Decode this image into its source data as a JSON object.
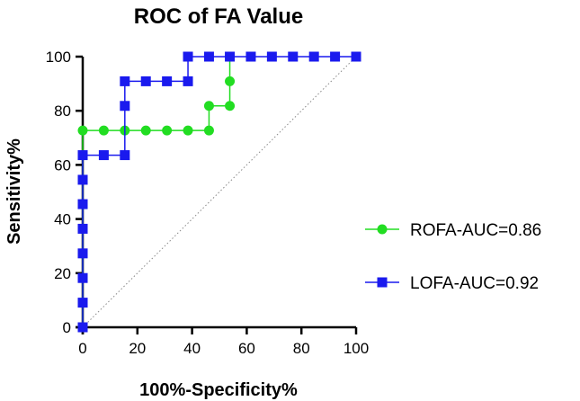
{
  "chart_data": {
    "type": "line",
    "title": "ROC of FA Value",
    "xlabel": "100%-Specificity%",
    "ylabel": "Sensitivity%",
    "xlim": [
      0,
      100
    ],
    "ylim": [
      0,
      100
    ],
    "xticks": [
      0,
      20,
      40,
      60,
      80,
      100
    ],
    "yticks": [
      0,
      20,
      40,
      60,
      80,
      100
    ],
    "grid": false,
    "legend_position": "right",
    "reference_line": {
      "style": "dotted",
      "from": [
        0,
        0
      ],
      "to": [
        100,
        100
      ],
      "color": "#888888"
    },
    "series": [
      {
        "name": "ROFA-AUC=0.86",
        "color": "#22dd22",
        "marker": "circle",
        "x": [
          0,
          0,
          0,
          0,
          0,
          0,
          0,
          0,
          0,
          7.7,
          15.4,
          23.1,
          30.8,
          38.5,
          46.2,
          46.2,
          53.8,
          53.8,
          53.8
        ],
        "y": [
          0,
          9.1,
          18.2,
          27.3,
          36.4,
          45.5,
          54.5,
          63.6,
          72.7,
          72.7,
          72.7,
          72.7,
          72.7,
          72.7,
          72.7,
          81.8,
          81.8,
          90.9,
          100
        ]
      },
      {
        "name": "LOFA-AUC=0.92",
        "color": "#1a1aee",
        "marker": "square",
        "x": [
          0,
          0,
          0,
          0,
          0,
          0,
          0,
          0,
          7.7,
          15.4,
          15.4,
          15.4,
          23.1,
          30.8,
          38.5,
          38.5,
          46.2,
          53.8,
          61.5,
          69.2,
          76.9,
          84.6,
          92.3,
          100
        ],
        "y": [
          0,
          9.1,
          18.2,
          27.3,
          36.4,
          45.5,
          54.5,
          63.6,
          63.6,
          63.6,
          81.8,
          90.9,
          90.9,
          90.9,
          90.9,
          100,
          100,
          100,
          100,
          100,
          100,
          100,
          100,
          100
        ]
      }
    ]
  }
}
